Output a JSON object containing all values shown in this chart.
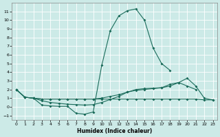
{
  "xlabel": "Humidex (Indice chaleur)",
  "background_color": "#cceae7",
  "grid_color": "#ffffff",
  "line_color": "#1a6b5a",
  "ylim": [
    -1.5,
    12.0
  ],
  "xlim": [
    -0.5,
    23.5
  ],
  "yticks": [
    -1,
    0,
    1,
    2,
    3,
    4,
    5,
    6,
    7,
    8,
    9,
    10,
    11
  ],
  "xticks": [
    0,
    1,
    2,
    3,
    4,
    5,
    6,
    7,
    8,
    9,
    10,
    11,
    12,
    13,
    14,
    15,
    16,
    17,
    18,
    19,
    20,
    21,
    22,
    23
  ],
  "line1_x": [
    0,
    1,
    2,
    3,
    4,
    5,
    6,
    7,
    8,
    9,
    10,
    11,
    12,
    13,
    14,
    15,
    16,
    17,
    18
  ],
  "line1_y": [
    2.0,
    1.1,
    1.0,
    0.2,
    0.1,
    0.05,
    0.05,
    -0.75,
    -0.85,
    -0.6,
    4.8,
    8.8,
    10.5,
    11.1,
    11.3,
    10.0,
    6.8,
    5.0,
    4.2
  ],
  "line2_x": [
    0,
    1,
    2,
    3,
    4,
    5,
    6,
    7,
    8,
    9,
    10,
    11,
    12,
    13,
    14,
    15,
    16,
    17,
    18,
    19,
    20,
    21
  ],
  "line2_y": [
    2.0,
    1.1,
    1.0,
    0.7,
    0.5,
    0.4,
    0.3,
    0.25,
    0.2,
    0.25,
    0.5,
    0.85,
    1.2,
    1.7,
    2.0,
    2.1,
    2.15,
    2.2,
    2.6,
    2.8,
    2.4,
    2.0
  ],
  "line3_x": [
    0,
    1,
    2,
    3,
    4,
    5,
    6,
    7,
    8,
    9,
    10,
    11,
    12,
    13,
    14,
    15,
    16,
    17,
    18,
    19,
    20,
    21,
    22,
    23
  ],
  "line3_y": [
    2.0,
    1.1,
    1.0,
    0.9,
    0.9,
    0.9,
    0.9,
    0.9,
    0.9,
    0.9,
    1.0,
    1.2,
    1.4,
    1.7,
    1.9,
    2.0,
    2.1,
    2.2,
    2.4,
    2.8,
    3.3,
    2.4,
    1.0,
    0.8
  ],
  "line4_x": [
    0,
    1,
    2,
    3,
    4,
    5,
    6,
    7,
    8,
    9,
    10,
    11,
    12,
    13,
    14,
    15,
    16,
    17,
    18,
    19,
    20,
    21,
    22,
    23
  ],
  "line4_y": [
    2.0,
    1.1,
    1.0,
    0.9,
    0.9,
    0.9,
    0.9,
    0.9,
    0.9,
    0.9,
    0.9,
    0.9,
    0.9,
    0.9,
    0.9,
    0.9,
    0.9,
    0.9,
    0.9,
    0.9,
    0.9,
    0.9,
    0.8,
    0.8
  ]
}
